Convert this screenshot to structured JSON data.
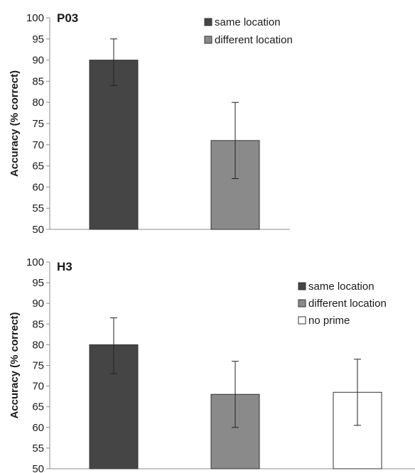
{
  "chart_data": [
    {
      "type": "bar",
      "title": "P03",
      "xlabel": "",
      "ylabel": "Accuracy (% correct)",
      "ylim": [
        50,
        100
      ],
      "yticks": [
        50,
        55,
        60,
        65,
        70,
        75,
        80,
        85,
        90,
        95,
        100
      ],
      "grid": false,
      "legend_position": "top-right",
      "series": [
        {
          "name": "same location",
          "value": 90,
          "error": [
            84,
            95
          ],
          "color": "#454545"
        },
        {
          "name": "different location",
          "value": 71,
          "error": [
            62,
            80
          ],
          "color": "#8a8a8a"
        }
      ]
    },
    {
      "type": "bar",
      "title": "H3",
      "xlabel": "",
      "ylabel": "Accuracy (% correct)",
      "ylim": [
        50,
        100
      ],
      "yticks": [
        50,
        55,
        60,
        65,
        70,
        75,
        80,
        85,
        90,
        95,
        100
      ],
      "grid": false,
      "legend_position": "top-right",
      "series": [
        {
          "name": "same location",
          "value": 80,
          "error": [
            73,
            86.5
          ],
          "color": "#454545"
        },
        {
          "name": "different location",
          "value": 68,
          "error": [
            60,
            76
          ],
          "color": "#8a8a8a"
        },
        {
          "name": "no prime",
          "value": 68.5,
          "error": [
            60.5,
            76.5
          ],
          "color": "#ffffff"
        }
      ]
    }
  ]
}
